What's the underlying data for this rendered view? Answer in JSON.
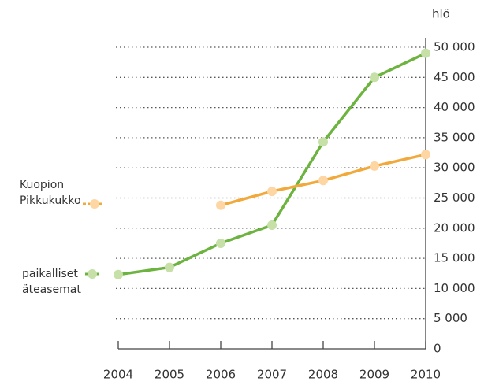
{
  "chart_data": {
    "type": "line",
    "y_label": "hlö",
    "categories": [
      "2004",
      "2005",
      "2006",
      "2007",
      "2008",
      "2009",
      "2010"
    ],
    "series": [
      {
        "name": "paikalliset äteasemat",
        "color": "#6db33f",
        "marker_color": "#c6e0a8",
        "values": [
          12300,
          13500,
          17500,
          20500,
          34300,
          45000,
          49000
        ]
      },
      {
        "name": "Kuopion Pikkukukko",
        "color": "#f2a93b",
        "marker_color": "#fdd6a3",
        "values": [
          null,
          null,
          23800,
          26100,
          27900,
          30300,
          32200
        ]
      }
    ],
    "ylim": [
      0,
      50000
    ],
    "yticks": [
      0,
      {
        "value": 5000,
        "label": "5 000"
      },
      {
        "value": 10000,
        "label": "10 000"
      },
      {
        "value": 15000,
        "label": "15 000"
      },
      {
        "value": 20000,
        "label": "20 000"
      },
      {
        "value": 25000,
        "label": "25 000"
      },
      {
        "value": 30000,
        "label": "30 000"
      },
      {
        "value": 35000,
        "label": "35 000"
      },
      {
        "value": 40000,
        "label": "40 000"
      },
      {
        "value": 45000,
        "label": "45 000"
      },
      {
        "value": 50000,
        "label": "50 000"
      }
    ],
    "grid": true
  }
}
